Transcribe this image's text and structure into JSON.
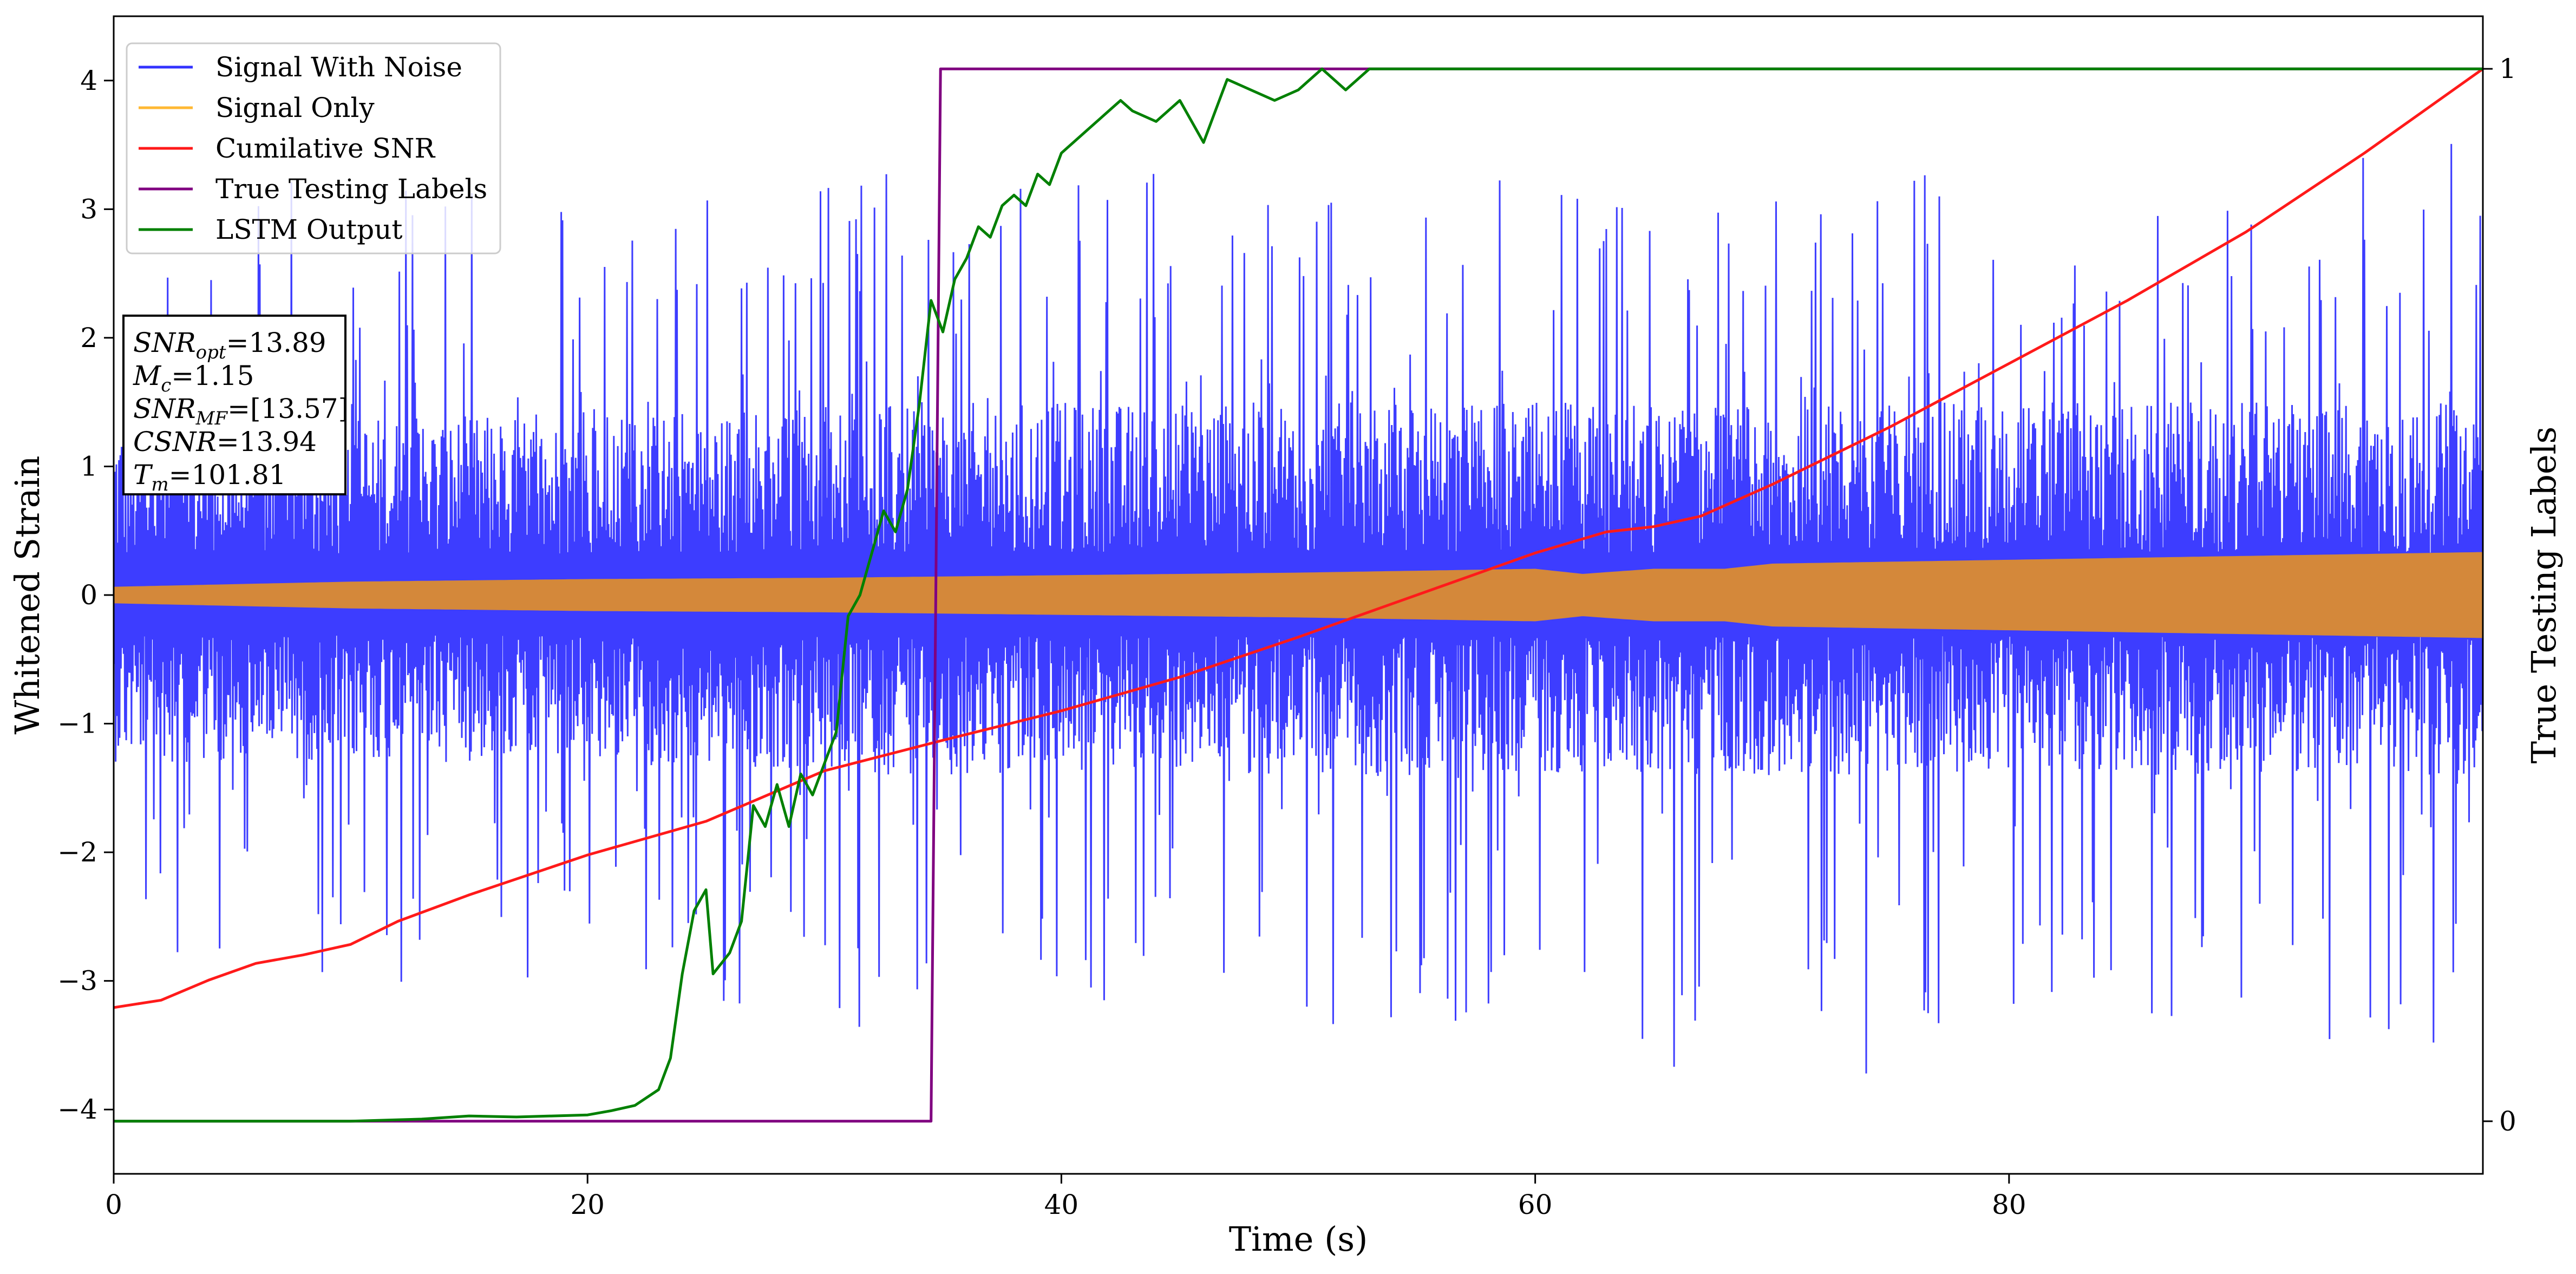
{
  "chart_data": {
    "type": "line",
    "xlabel": "Time (s)",
    "ylabel": "Whitened Strain",
    "y2label": "True Testing Labels",
    "xlim": [
      0,
      100
    ],
    "ylim": [
      -4.5,
      4.5
    ],
    "y2lim": [
      -0.05,
      1.05
    ],
    "x_ticks": [
      0,
      20,
      40,
      60,
      80
    ],
    "x_tick_labels": [
      "0",
      "20",
      "40",
      "60",
      "80"
    ],
    "y_ticks": [
      -4,
      -3,
      -2,
      -1,
      0,
      1,
      2,
      3,
      4
    ],
    "y_tick_labels": [
      "−4",
      "−3",
      "−2",
      "−1",
      "0",
      "1",
      "2",
      "3",
      "4"
    ],
    "y2_ticks": [
      0,
      1
    ],
    "y2_tick_labels": [
      "0",
      "1"
    ],
    "grid": false,
    "legend_position": "top-left",
    "legend": [
      {
        "label": "Signal With Noise",
        "color": "#3333ff"
      },
      {
        "label": "Signal Only",
        "color": "#ffb833"
      },
      {
        "label": "Cumilative SNR",
        "color": "#ff1a1a"
      },
      {
        "label": "True Testing Labels",
        "color": "#800080"
      },
      {
        "label": "LSTM Output",
        "color": "#008000"
      }
    ],
    "annotation": {
      "lines": [
        {
          "sym": "SNR",
          "sub": "opt",
          "value": "=13.89"
        },
        {
          "sym": "M",
          "sub": "c",
          "value": "=1.15"
        },
        {
          "sym": "SNR",
          "sub": "MF",
          "value": "=[13.57]"
        },
        {
          "sym": "CSNR",
          "sub": "",
          "value": "=13.94"
        },
        {
          "sym": "T",
          "sub": "m",
          "value": "=101.81"
        }
      ]
    },
    "series": [
      {
        "name": "Signal With Noise",
        "axis": "left",
        "color": "#3333ff",
        "envelope": {
          "x": [
            0,
            10,
            20,
            30,
            40,
            50,
            60,
            70,
            80,
            90,
            100
          ],
          "upper": [
            3.0,
            3.3,
            3.1,
            3.3,
            3.3,
            3.3,
            3.3,
            3.5,
            3.3,
            3.3,
            3.7
          ],
          "lower": [
            -2.8,
            -3.1,
            -3.0,
            -3.5,
            -3.3,
            -3.4,
            -3.3,
            -4.1,
            -3.3,
            -3.3,
            -3.9
          ],
          "dense_upper": [
            1.4,
            1.4,
            1.4,
            1.5,
            1.5,
            1.5,
            1.5,
            1.5,
            1.5,
            1.5,
            1.5
          ],
          "dense_lower": [
            -1.3,
            -1.3,
            -1.3,
            -1.4,
            -1.4,
            -1.4,
            -1.4,
            -1.4,
            -1.4,
            -1.4,
            -1.4
          ]
        }
      },
      {
        "name": "Signal Only",
        "axis": "left",
        "color": "#ffb833",
        "envelope": {
          "x": [
            0,
            10,
            20,
            30,
            40,
            50,
            60,
            62,
            65,
            68,
            70,
            80,
            90,
            100
          ],
          "amplitude": [
            0.06,
            0.1,
            0.12,
            0.13,
            0.15,
            0.17,
            0.2,
            0.16,
            0.2,
            0.2,
            0.24,
            0.27,
            0.3,
            0.33
          ]
        }
      },
      {
        "name": "Cumilative SNR",
        "axis": "right",
        "color": "#ff1a1a",
        "x": [
          0,
          2,
          4,
          6,
          8,
          10,
          12,
          15,
          20,
          25,
          30,
          35,
          40,
          45,
          50,
          55,
          60,
          63,
          65,
          67,
          70,
          75,
          80,
          85,
          90,
          95,
          100
        ],
        "y": [
          0.108,
          0.115,
          0.134,
          0.15,
          0.158,
          0.168,
          0.19,
          0.215,
          0.253,
          0.285,
          0.333,
          0.362,
          0.39,
          0.422,
          0.46,
          0.5,
          0.54,
          0.56,
          0.565,
          0.575,
          0.605,
          0.66,
          0.72,
          0.78,
          0.845,
          0.92,
          1.0
        ]
      },
      {
        "name": "True Testing Labels",
        "axis": "right",
        "color": "#800080",
        "x": [
          0,
          34.5,
          34.9,
          100
        ],
        "y": [
          0,
          0,
          1,
          1
        ]
      },
      {
        "name": "LSTM Output",
        "axis": "right",
        "color": "#008000",
        "x": [
          0,
          10,
          13,
          15,
          17,
          20,
          21,
          22,
          23,
          23.5,
          24,
          24.5,
          25,
          25.3,
          26,
          26.5,
          27,
          27.5,
          28,
          28.5,
          29,
          29.5,
          30,
          30.5,
          31,
          31.5,
          32,
          32.5,
          33,
          33.5,
          34,
          34.5,
          35,
          35.5,
          36,
          36.5,
          37,
          37.5,
          38,
          38.5,
          39,
          39.5,
          40,
          41,
          42,
          42.5,
          43,
          44,
          45,
          46,
          46.5,
          47,
          48,
          49,
          50,
          50.5,
          51,
          52,
          53,
          54,
          55,
          60,
          100
        ],
        "y": [
          0,
          0,
          0.002,
          0.005,
          0.004,
          0.006,
          0.01,
          0.015,
          0.03,
          0.06,
          0.14,
          0.2,
          0.22,
          0.14,
          0.16,
          0.19,
          0.3,
          0.28,
          0.32,
          0.28,
          0.33,
          0.31,
          0.34,
          0.37,
          0.48,
          0.5,
          0.54,
          0.58,
          0.56,
          0.6,
          0.68,
          0.78,
          0.75,
          0.8,
          0.82,
          0.85,
          0.84,
          0.87,
          0.88,
          0.87,
          0.9,
          0.89,
          0.92,
          0.94,
          0.96,
          0.97,
          0.96,
          0.95,
          0.97,
          0.93,
          0.96,
          0.99,
          0.98,
          0.97,
          0.98,
          0.99,
          1.0,
          0.98,
          1.0,
          1.0,
          1.0,
          1.0,
          1.0
        ]
      }
    ]
  }
}
